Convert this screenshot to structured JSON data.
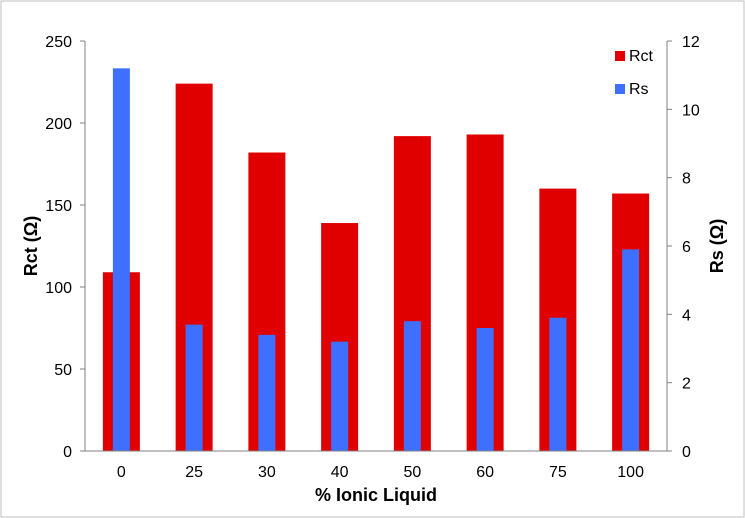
{
  "chart_data": {
    "type": "bar",
    "categories": [
      "0",
      "25",
      "30",
      "40",
      "50",
      "60",
      "75",
      "100"
    ],
    "xlabel": "% Ionic Liquid",
    "series": [
      {
        "name": "Rct",
        "axis": "left",
        "color": "#e00000",
        "values": [
          109,
          224,
          182,
          139,
          192,
          193,
          160,
          157
        ]
      },
      {
        "name": "Rs",
        "axis": "right",
        "color": "#3f6fff",
        "values": [
          11.2,
          3.7,
          3.4,
          3.2,
          3.8,
          3.6,
          3.9,
          5.9
        ]
      }
    ],
    "y_left": {
      "label": "Rct (Ω)",
      "range": [
        0,
        250
      ],
      "ticks": [
        "0",
        "50",
        "100",
        "150",
        "200",
        "250"
      ]
    },
    "y_right": {
      "label": "Rs (Ω)",
      "range": [
        0,
        12
      ],
      "ticks": [
        "0",
        "2",
        "4",
        "6",
        "8",
        "10",
        "12"
      ]
    },
    "grid": false,
    "legend": {
      "position": "top-right",
      "entries": [
        "Rct",
        "Rs"
      ]
    }
  }
}
